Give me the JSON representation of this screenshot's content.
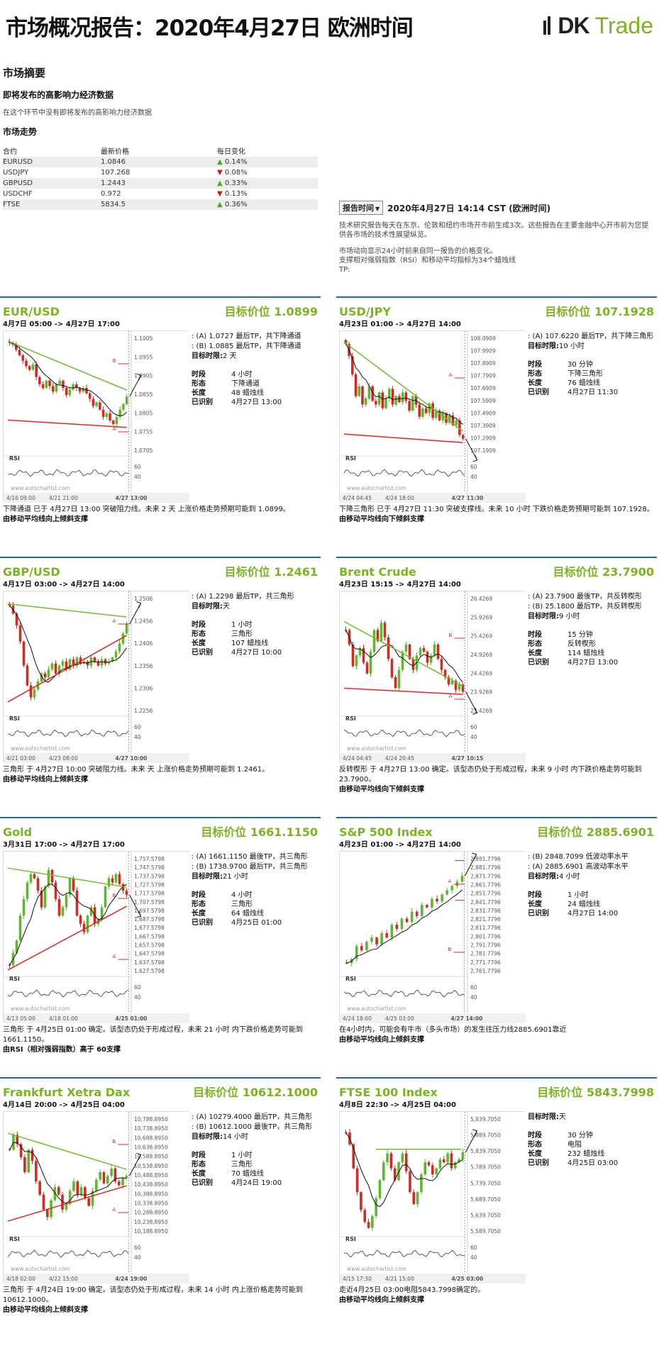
{
  "header": {
    "title": "市场概况报告：2020年4月27日 欧洲时间",
    "brand_1": "DK",
    "brand_2": "Trade"
  },
  "summary": {
    "heading": "市场摘要",
    "subheading": "即将发布的高影响力经济数据",
    "note": "在这个环节中没有即将发布的高影响力经济数据",
    "trend_title": "市场走势",
    "columns": [
      "合约",
      "最新价格",
      "每日变化"
    ],
    "rows": [
      {
        "symbol": "EURUSD",
        "price": "1.0846",
        "dir": "up",
        "change": "0.14%"
      },
      {
        "symbol": "USDJPY",
        "price": "107.268",
        "dir": "down",
        "change": "0.08%"
      },
      {
        "symbol": "GBPUSD",
        "price": "1.2443",
        "dir": "up",
        "change": "0.33%"
      },
      {
        "symbol": "USDCHF",
        "price": "0.972",
        "dir": "down",
        "change": "0.13%"
      },
      {
        "symbol": "FTSE",
        "price": "5834.5",
        "dir": "up",
        "change": "0.36%"
      }
    ]
  },
  "report": {
    "button": "报告时间",
    "time": "2020年4月27日 14:14 CST (欧洲时间)",
    "text1": "技术研究报告每天在东京、伦敦和纽约市场开市前生成3次。这些报告在主要金融中心开市前为您提供各市场的技术性展望纵览。",
    "text2": "市场动向显示24小时前来自同一报告的价格变化。",
    "text3": "支撑相对强弱指数（RSI）和移动平均指标为34个蜡烛线",
    "text4": "TP:"
  },
  "labels": {
    "timeframe": "时段",
    "pattern": "形态",
    "length": "长度",
    "identified": "已识别",
    "target_time": "目标时限:",
    "rsi": "RSI",
    "watermark": "www.autochartist.com"
  },
  "colors": {
    "brand_green": "#7ab51d",
    "divider_blue": "#1d6aa8",
    "support_red": "#e8231b",
    "resistance_green": "#6cbf2b"
  },
  "panels": [
    {
      "name": "EUR/USD",
      "target": "目标价位 1.0899",
      "range": "4月7日 05:00 -> 4月27日 17:00",
      "tp": [
        ": (A) 1.0727 最后TP，共下降通道",
        ": (B) 1.0885 最后TP，共下降通道"
      ],
      "target_time": "2 天",
      "timeframe": "4 小时",
      "pattern": "下降通道",
      "length": "48 蜡烛线",
      "identified": "4月27日 13:00",
      "yticks": [
        "1.1005",
        "1.0955",
        "1.0905",
        "1.0855",
        "1.0805",
        "1.0755",
        "1.0705"
      ],
      "xticks": [
        "4/16 09:00",
        "4/21 21:00",
        "4/27 13:00"
      ],
      "rsi_ticks": [
        "60",
        "40"
      ],
      "desc": "下降通道 已于 4月27日 13:00 突破阻力线。未来 2 天 上涨价格走势预期可能到 1.0899。",
      "desc_b": "由移动平均线向上倾斜支撑",
      "shape": "channel-down",
      "breakout": "up",
      "markers": [
        "B",
        "A"
      ],
      "closes": [
        1.0995,
        1.099,
        1.0975,
        1.096,
        1.0945,
        1.093,
        1.092,
        1.0935,
        1.09,
        1.088,
        1.087,
        1.089,
        1.0875,
        1.086,
        1.088,
        1.089,
        1.087,
        1.085,
        1.0865,
        1.088,
        1.087,
        1.086,
        1.087,
        1.0855,
        1.084,
        1.082,
        1.083,
        1.081,
        1.079,
        1.08,
        1.078,
        1.077,
        1.079,
        1.081,
        1.0825,
        1.0846
      ],
      "ymin": 1.069,
      "ymax": 1.1015
    },
    {
      "name": "USD/JPY",
      "target": "目标价位 107.1928",
      "range": "4月23日 01:00 -> 4月27日 14:00",
      "tp": [
        ": (A) 107.6220 最后TP，共下降三角形"
      ],
      "target_time": "10 小时",
      "timeframe": "30 分钟",
      "pattern": "下降三角形",
      "length": "76 蜡烛线",
      "identified": "4月27日 11:30",
      "yticks": [
        "108.0909",
        "107.9909",
        "107.8909",
        "107.7909",
        "107.6909",
        "107.5909",
        "107.4909",
        "107.3909",
        "107.2909",
        "107.1909"
      ],
      "xticks": [
        "4/24 04:45",
        "4/24 18:00",
        "4/27 11:30"
      ],
      "rsi_ticks": [
        "60",
        "40"
      ],
      "desc": "下降三角形 已于 4月27日 11:30 突破支撑线。未来 10 小时 下跌价格走势预期可能到 107.1928。",
      "desc_b": "由移动平均线向下倾斜支撑",
      "shape": "triangle-down",
      "breakout": "down",
      "markers": [
        "A"
      ],
      "closes": [
        108.05,
        107.95,
        107.8,
        107.62,
        107.7,
        107.55,
        107.6,
        107.7,
        107.58,
        107.55,
        107.65,
        107.52,
        107.6,
        107.68,
        107.55,
        107.62,
        107.57,
        107.65,
        107.58,
        107.5,
        107.62,
        107.55,
        107.45,
        107.52,
        107.48,
        107.56,
        107.44,
        107.5,
        107.42,
        107.48,
        107.4,
        107.46,
        107.38,
        107.42,
        107.3,
        107.268
      ],
      "ymin": 107.15,
      "ymax": 108.12
    },
    {
      "name": "GBP/USD",
      "target": "目标价位 1.2461",
      "range": "4月17日 03:00 -> 4月27日 14:00",
      "tp": [
        ": (A) 1.2298 最后TP，共三角形"
      ],
      "target_time": "天",
      "timeframe": "1 小时",
      "pattern": "三角形",
      "length": "107 蜡烛线",
      "identified": "4月27日 10:00",
      "yticks": [
        "1.2506",
        "1.2456",
        "1.2406",
        "1.2356",
        "1.2306",
        "1.2256"
      ],
      "xticks": [
        "4/21 03:00",
        "4/23 08:00",
        "4/27 10:00"
      ],
      "rsi_ticks": [
        "60",
        "40"
      ],
      "desc": "三角形 于 4月27日 10:00 突破阻力线。未来 天 上涨价格走势预期可能到 1.2461。",
      "desc_b": "由移动平均线向上倾斜支撑",
      "shape": "triangle",
      "breakout": "up",
      "markers": [
        "A"
      ],
      "closes": [
        1.249,
        1.247,
        1.244,
        1.24,
        1.234,
        1.229,
        1.226,
        1.228,
        1.23,
        1.232,
        1.231,
        1.233,
        1.2345,
        1.232,
        1.234,
        1.235,
        1.233,
        1.2355,
        1.234,
        1.236,
        1.2345,
        1.235,
        1.234,
        1.236,
        1.235,
        1.234,
        1.2355,
        1.2345,
        1.235,
        1.236,
        1.2375,
        1.2395,
        1.242,
        1.2443
      ],
      "ymin": 1.222,
      "ymax": 1.2515
    },
    {
      "name": "Brent Crude",
      "target": "目标价位 23.7900",
      "range": "4月23日 15:15 -> 4月27日 14:00",
      "tp": [
        ": (A) 23.7900 最後TP，共反转楔形",
        ": (B) 25.1800 最后TP，共反转楔形"
      ],
      "target_time": "9 小时",
      "timeframe": "15 分钟",
      "pattern": "反转楔形",
      "length": "114 蜡烛线",
      "identified": "4月27日 13:00",
      "yticks": [
        "26.4269",
        "25.9269",
        "25.4269",
        "24.9269",
        "24.4269",
        "23.9269",
        "23.4269"
      ],
      "xticks": [
        "4/24 04:45",
        "4/24 20:45",
        "4/27 10:15"
      ],
      "rsi_ticks": [
        "60",
        "40"
      ],
      "desc": "反转楔形 于 4月27日 13:00 确定。该型态仍处于形成过程，未来 9 小时 内下跌价格走势可能到 23.7900。",
      "desc_b": "由移动平均线向下倾斜支撑",
      "shape": "wedge",
      "breakout": "down",
      "markers": [
        "B",
        "A"
      ],
      "closes": [
        25.6,
        25.2,
        24.6,
        24.9,
        25.1,
        24.7,
        24.4,
        25.0,
        25.6,
        25.3,
        25.8,
        25.4,
        24.8,
        24.3,
        24.0,
        24.5,
        25.0,
        25.2,
        24.8,
        24.5,
        24.9,
        25.1,
        25.0,
        24.7,
        24.9,
        25.2,
        24.8,
        24.5,
        24.3,
        24.1,
        24.2,
        23.95,
        24.1,
        23.9
      ],
      "ymin": 23.3,
      "ymax": 26.55
    },
    {
      "name": "Gold",
      "target": "目标价位 1661.1150",
      "range": "3月31日 17:00 -> 4月27日 17:00",
      "tp": [
        ": (A) 1661.1150 最後TP，共三角形",
        ": (B) 1738.9700 最后TP，共三角形"
      ],
      "target_time": "21 小时",
      "timeframe": "4 小时",
      "pattern": "三角形",
      "length": "64 蜡烛线",
      "identified": "4月25日 01:00",
      "yticks": [
        "1,757.5798",
        "1,747.5798",
        "1,737.5798",
        "1,727.5798",
        "1,717.5798",
        "1,707.5798",
        "1,697.5798",
        "1,687.5798",
        "1,677.5798",
        "1,667.5798",
        "1,657.5798",
        "1,647.5798",
        "1,637.5798",
        "1,627.5798"
      ],
      "xticks": [
        "4/13 05:00",
        "4/18 01:00",
        "4/25 01:00"
      ],
      "rsi_ticks": [
        "60",
        "40"
      ],
      "desc": "三角形 于 4月25日 01:00 确定。该型态仍处于形成过程，未来 21 小时 内下跌价格走势可能到 1661.1150。",
      "desc_b": "由RSI（相对强弱指数）高于 60支撑",
      "shape": "triangle",
      "breakout": "down",
      "markers": [
        "B",
        "A"
      ],
      "closes": [
        1630,
        1645,
        1660,
        1690,
        1710,
        1730,
        1740,
        1735,
        1720,
        1700,
        1725,
        1745,
        1730,
        1710,
        1690,
        1700,
        1715,
        1735,
        1720,
        1690,
        1680,
        1670,
        1690,
        1700,
        1680,
        1685,
        1700,
        1725,
        1735,
        1730,
        1740,
        1728,
        1720,
        1715
      ],
      "ymin": 1620,
      "ymax": 1762
    },
    {
      "name": "S&P 500 Index",
      "target": "目标价位 2885.6901",
      "range": "4月23日 01:00 -> 4月27日 14:00",
      "tp": [
        ": (B) 2848.7099 低波动率水平",
        ": (A) 2885.6901 高波动率水平"
      ],
      "target_time": "4 小时",
      "timeframe": "1 小时",
      "pattern": "",
      "length": "24 蜡烛线",
      "identified": "4月27日 14:00",
      "yticks": [
        "2,891.7796",
        "2,881.7796",
        "2,871.7796",
        "2,861.7796",
        "2,851.7796",
        "2,841.7796",
        "2,831.7796",
        "2,821.7796",
        "2,811.7796",
        "2,801.7796",
        "2,791.7796",
        "2,781.7796",
        "2,771.7796",
        "2,761.7796"
      ],
      "xticks": [
        "4/24 18:00",
        "4/25 03:00",
        "4/27 14:00"
      ],
      "rsi_ticks": [
        "60",
        "40"
      ],
      "desc": "在4小时内，可能会有牛市（多头市场）的发生往压力线2885.6901靠近",
      "desc_b": "由移动平均线向上倾斜支撑",
      "shape": "levels",
      "breakout": "up",
      "markers": [
        "A",
        "B"
      ],
      "closes": [
        2770,
        2775,
        2790,
        2785,
        2795,
        2800,
        2792,
        2805,
        2800,
        2815,
        2810,
        2822,
        2818,
        2830,
        2825,
        2838,
        2835,
        2845,
        2842,
        2850,
        2855,
        2860,
        2865,
        2872
      ],
      "ymin": 2758,
      "ymax": 2895
    },
    {
      "name": "Frankfurt Xetra Dax",
      "target": "目标价位 10612.1000",
      "range": "4月14日 20:00 -> 4月25日 04:00",
      "tp": [
        ": (A) 10279.4000 最后TP，共三角形",
        ": (B) 10612.1000 最後TP，共三角形"
      ],
      "target_time": "14 小时",
      "timeframe": "1 小时",
      "pattern": "三角形",
      "length": "70 蜡烛线",
      "identified": "4月24日 19:00",
      "yticks": [
        "10,788.8950",
        "10,738.8950",
        "10,688.8950",
        "10,638.8950",
        "10,588.8950",
        "10,538.8950",
        "10,488.8950",
        "10,438.8950",
        "10,388.8950",
        "10,338.8950",
        "10,288.8950",
        "10,238.8950",
        "10,188.8950"
      ],
      "xticks": [
        "4/18 02:00",
        "4/22 15:00",
        "4/24 19:00"
      ],
      "rsi_ticks": [
        "60",
        "40"
      ],
      "desc": "三角形 于 4月24日 19:00 确定。该型态仍处于形成过程，未来 14 小时 内上涨价格走势可能到 10612.1000。",
      "desc_b": "由移动平均线向上倾斜支撑",
      "shape": "triangle",
      "breakout": "up",
      "markers": [
        "B",
        "A"
      ],
      "closes": [
        10620,
        10700,
        10650,
        10580,
        10500,
        10620,
        10560,
        10450,
        10380,
        10300,
        10260,
        10350,
        10420,
        10380,
        10300,
        10330,
        10400,
        10450,
        10380,
        10420,
        10360,
        10320,
        10400,
        10460,
        10500,
        10440,
        10480,
        10520,
        10450,
        10430,
        10470,
        10480
      ],
      "ymin": 10170,
      "ymax": 10800
    },
    {
      "name": "FTSE 100 Index",
      "target": "目标价位 5843.7998",
      "range": "4月8日 22:30 -> 4月25日 04:00",
      "tp": [],
      "target_time": "天",
      "timeframe": "30 分钟",
      "pattern": "电阻",
      "length": "232 蜡烛线",
      "identified": "4月25日 03:00",
      "yticks": [
        "5,939.7050",
        "5,889.7050",
        "5,839.7050",
        "5,789.7050",
        "5,739.7050",
        "5,689.7050",
        "5,639.7050",
        "5,589.7050"
      ],
      "xticks": [
        "4/15 17:30",
        "4/21 15:00",
        "4/25 03:00"
      ],
      "rsi_ticks": [
        "60",
        "40"
      ],
      "desc": "走近4月25日 03:00电阻5843.7998确定的。",
      "desc_b": "由移动平均线向上倾斜支撑",
      "shape": "resistance",
      "breakout": "up",
      "markers": [],
      "closes": [
        5900,
        5860,
        5780,
        5700,
        5640,
        5600,
        5580,
        5620,
        5680,
        5740,
        5800,
        5830,
        5780,
        5740,
        5800,
        5830,
        5770,
        5700,
        5660,
        5700,
        5760,
        5800,
        5790,
        5760,
        5780,
        5810,
        5800,
        5830,
        5780,
        5800,
        5810,
        5834
      ],
      "ymin": 5560,
      "ymax": 5955
    }
  ]
}
